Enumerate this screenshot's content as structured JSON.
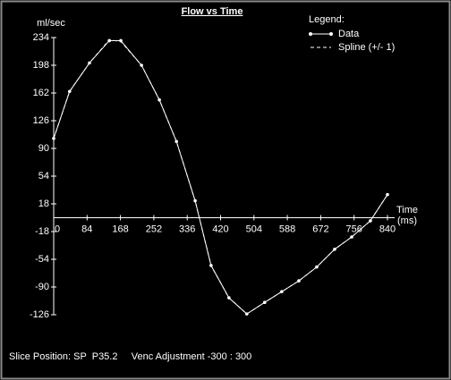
{
  "chart_data": {
    "type": "line",
    "title": "Flow vs Time",
    "y_label": "ml/sec",
    "x_label": "Time",
    "x_unit": "(ms)",
    "legend_title": "Legend:",
    "x": [
      0,
      40,
      90,
      140,
      169,
      221,
      266,
      309,
      356,
      396,
      441,
      486,
      531,
      574,
      617,
      662,
      707,
      750,
      797,
      840
    ],
    "series": [
      {
        "name": "Data",
        "color": "#ffffff",
        "values": [
          103,
          164,
          201,
          230,
          230,
          198,
          153,
          99,
          22,
          -62,
          -104,
          -125,
          -110,
          -96,
          -82,
          -64,
          -41,
          -25,
          -4,
          30
        ]
      },
      {
        "name": "Spline (+/- 1)",
        "color": "#ffffff",
        "values": [
          103,
          164,
          201,
          231,
          229,
          198,
          153,
          99,
          22,
          -62,
          -104,
          -125,
          -110,
          -96,
          -82,
          -64,
          -41,
          -25,
          -4,
          30
        ]
      }
    ],
    "xlim": [
      0,
      840
    ],
    "xticks": [
      0,
      84,
      168,
      252,
      336,
      420,
      504,
      588,
      672,
      756,
      840
    ],
    "ylim": [
      -126,
      234
    ],
    "yticks": [
      234,
      198,
      162,
      126,
      90,
      54,
      18,
      -18,
      -54,
      -90,
      -126
    ],
    "footer": "Slice Position: SP  P35.2     Venc Adjustment -300 : 300"
  }
}
